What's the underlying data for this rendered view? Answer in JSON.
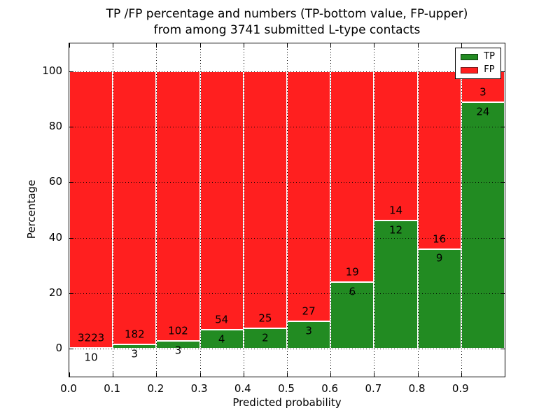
{
  "title": {
    "line1": "TP /FP percentage and numbers (TP-bottom value, FP-upper)",
    "line2": "from among 3741 submitted L-type contacts"
  },
  "chart_data": {
    "type": "bar",
    "stacked": true,
    "normalized_to_percent": true,
    "x_bins": [
      [
        0.0,
        0.1
      ],
      [
        0.1,
        0.2
      ],
      [
        0.2,
        0.3
      ],
      [
        0.3,
        0.4
      ],
      [
        0.4,
        0.5
      ],
      [
        0.5,
        0.6
      ],
      [
        0.6,
        0.7
      ],
      [
        0.7,
        0.8
      ],
      [
        0.8,
        0.9
      ],
      [
        0.9,
        1.0
      ]
    ],
    "series": [
      {
        "name": "TP",
        "color": "#228b22",
        "counts": [
          10,
          3,
          3,
          4,
          2,
          3,
          6,
          12,
          9,
          24
        ]
      },
      {
        "name": "FP",
        "color": "#ff1f1f",
        "counts": [
          3223,
          182,
          102,
          54,
          25,
          27,
          19,
          14,
          16,
          3
        ]
      }
    ],
    "tp_percent": [
      0.31,
      1.62,
      2.86,
      6.9,
      7.41,
      10.0,
      24.0,
      46.15,
      36.0,
      88.89
    ],
    "total_contacts": 3741,
    "xlabel": "Predicted probability",
    "ylabel": "Percentage",
    "xticks": [
      "0.0",
      "0.1",
      "0.2",
      "0.3",
      "0.4",
      "0.5",
      "0.6",
      "0.7",
      "0.8",
      "0.9"
    ],
    "yticks": [
      "0",
      "20",
      "40",
      "60",
      "80",
      "100"
    ],
    "xlim": [
      0.0,
      1.0
    ],
    "ylim": [
      -10,
      110
    ],
    "grid": "dotted",
    "bar_edge_color": "#ffffff",
    "legend": {
      "position": "upper right",
      "entries": [
        {
          "label": "TP",
          "color": "#228b22"
        },
        {
          "label": "FP",
          "color": "#ff1f1f"
        }
      ]
    }
  }
}
